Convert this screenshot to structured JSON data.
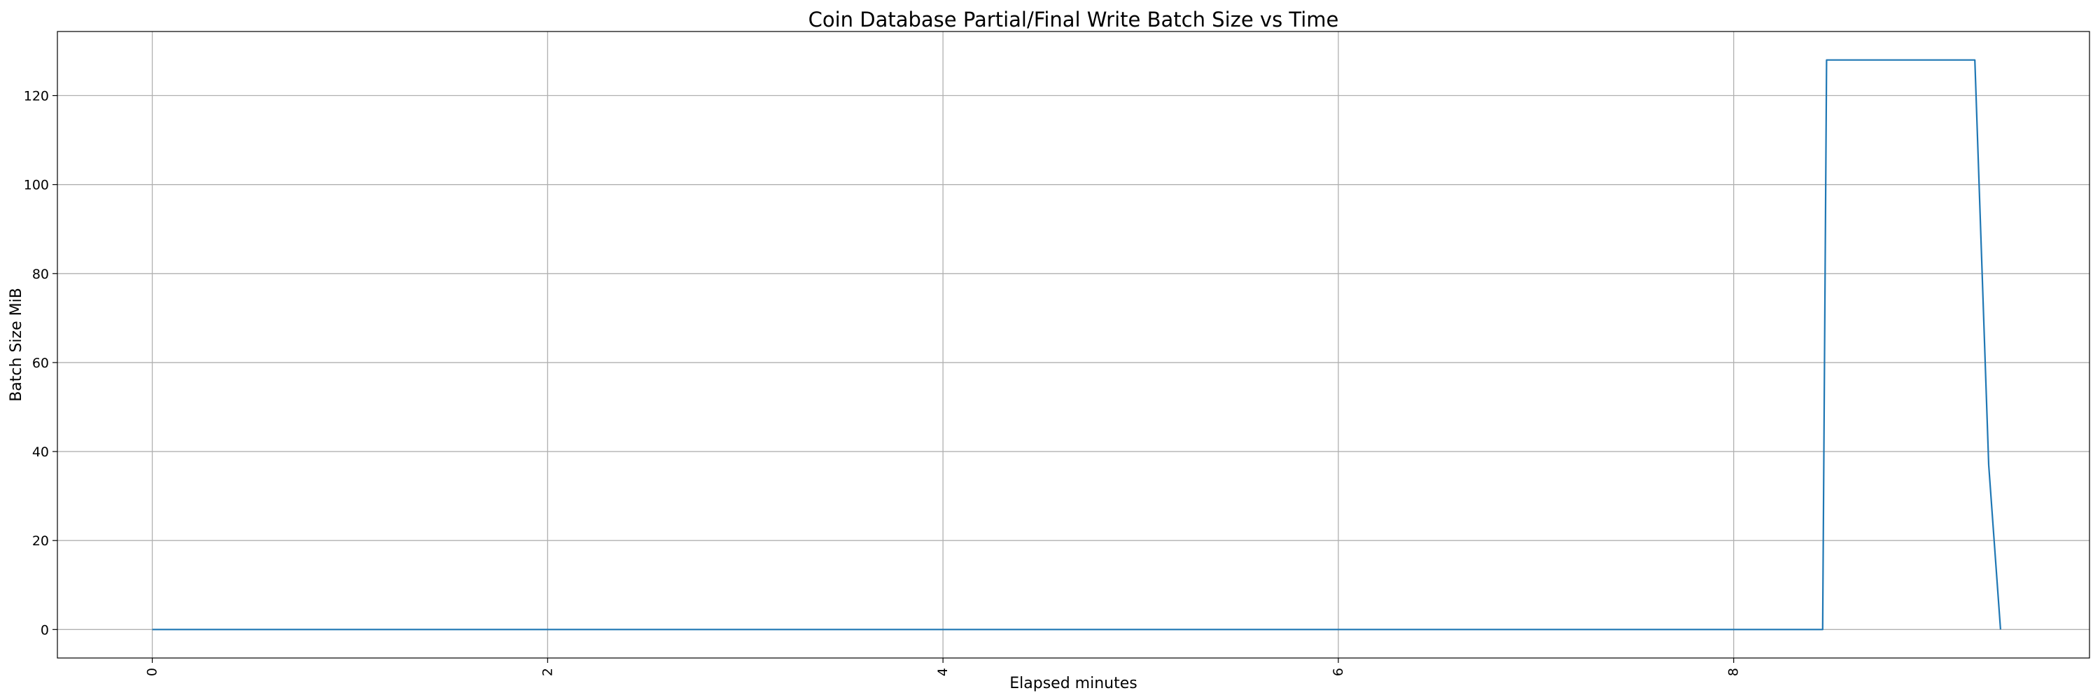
{
  "chart_data": {
    "type": "line",
    "title": "Coin Database Partial/Final Write Batch Size vs Time",
    "xlabel": "Elapsed minutes",
    "ylabel": "Batch Size MiB",
    "xlim": [
      -0.48,
      9.8
    ],
    "ylim": [
      -6.4,
      134.4
    ],
    "xticks": [
      0,
      2,
      4,
      6,
      8
    ],
    "yticks": [
      0,
      20,
      40,
      60,
      80,
      100,
      120
    ],
    "x_tick_rotation": 90,
    "grid": true,
    "line_color": "#1f77b4",
    "series": [
      {
        "x": [
          0,
          2,
          4,
          6,
          8,
          8.45,
          8.47,
          9.2,
          9.22,
          9.29,
          9.35
        ],
        "y": [
          0,
          0,
          0,
          0,
          0,
          0,
          128,
          128,
          128,
          37,
          0
        ]
      }
    ]
  }
}
